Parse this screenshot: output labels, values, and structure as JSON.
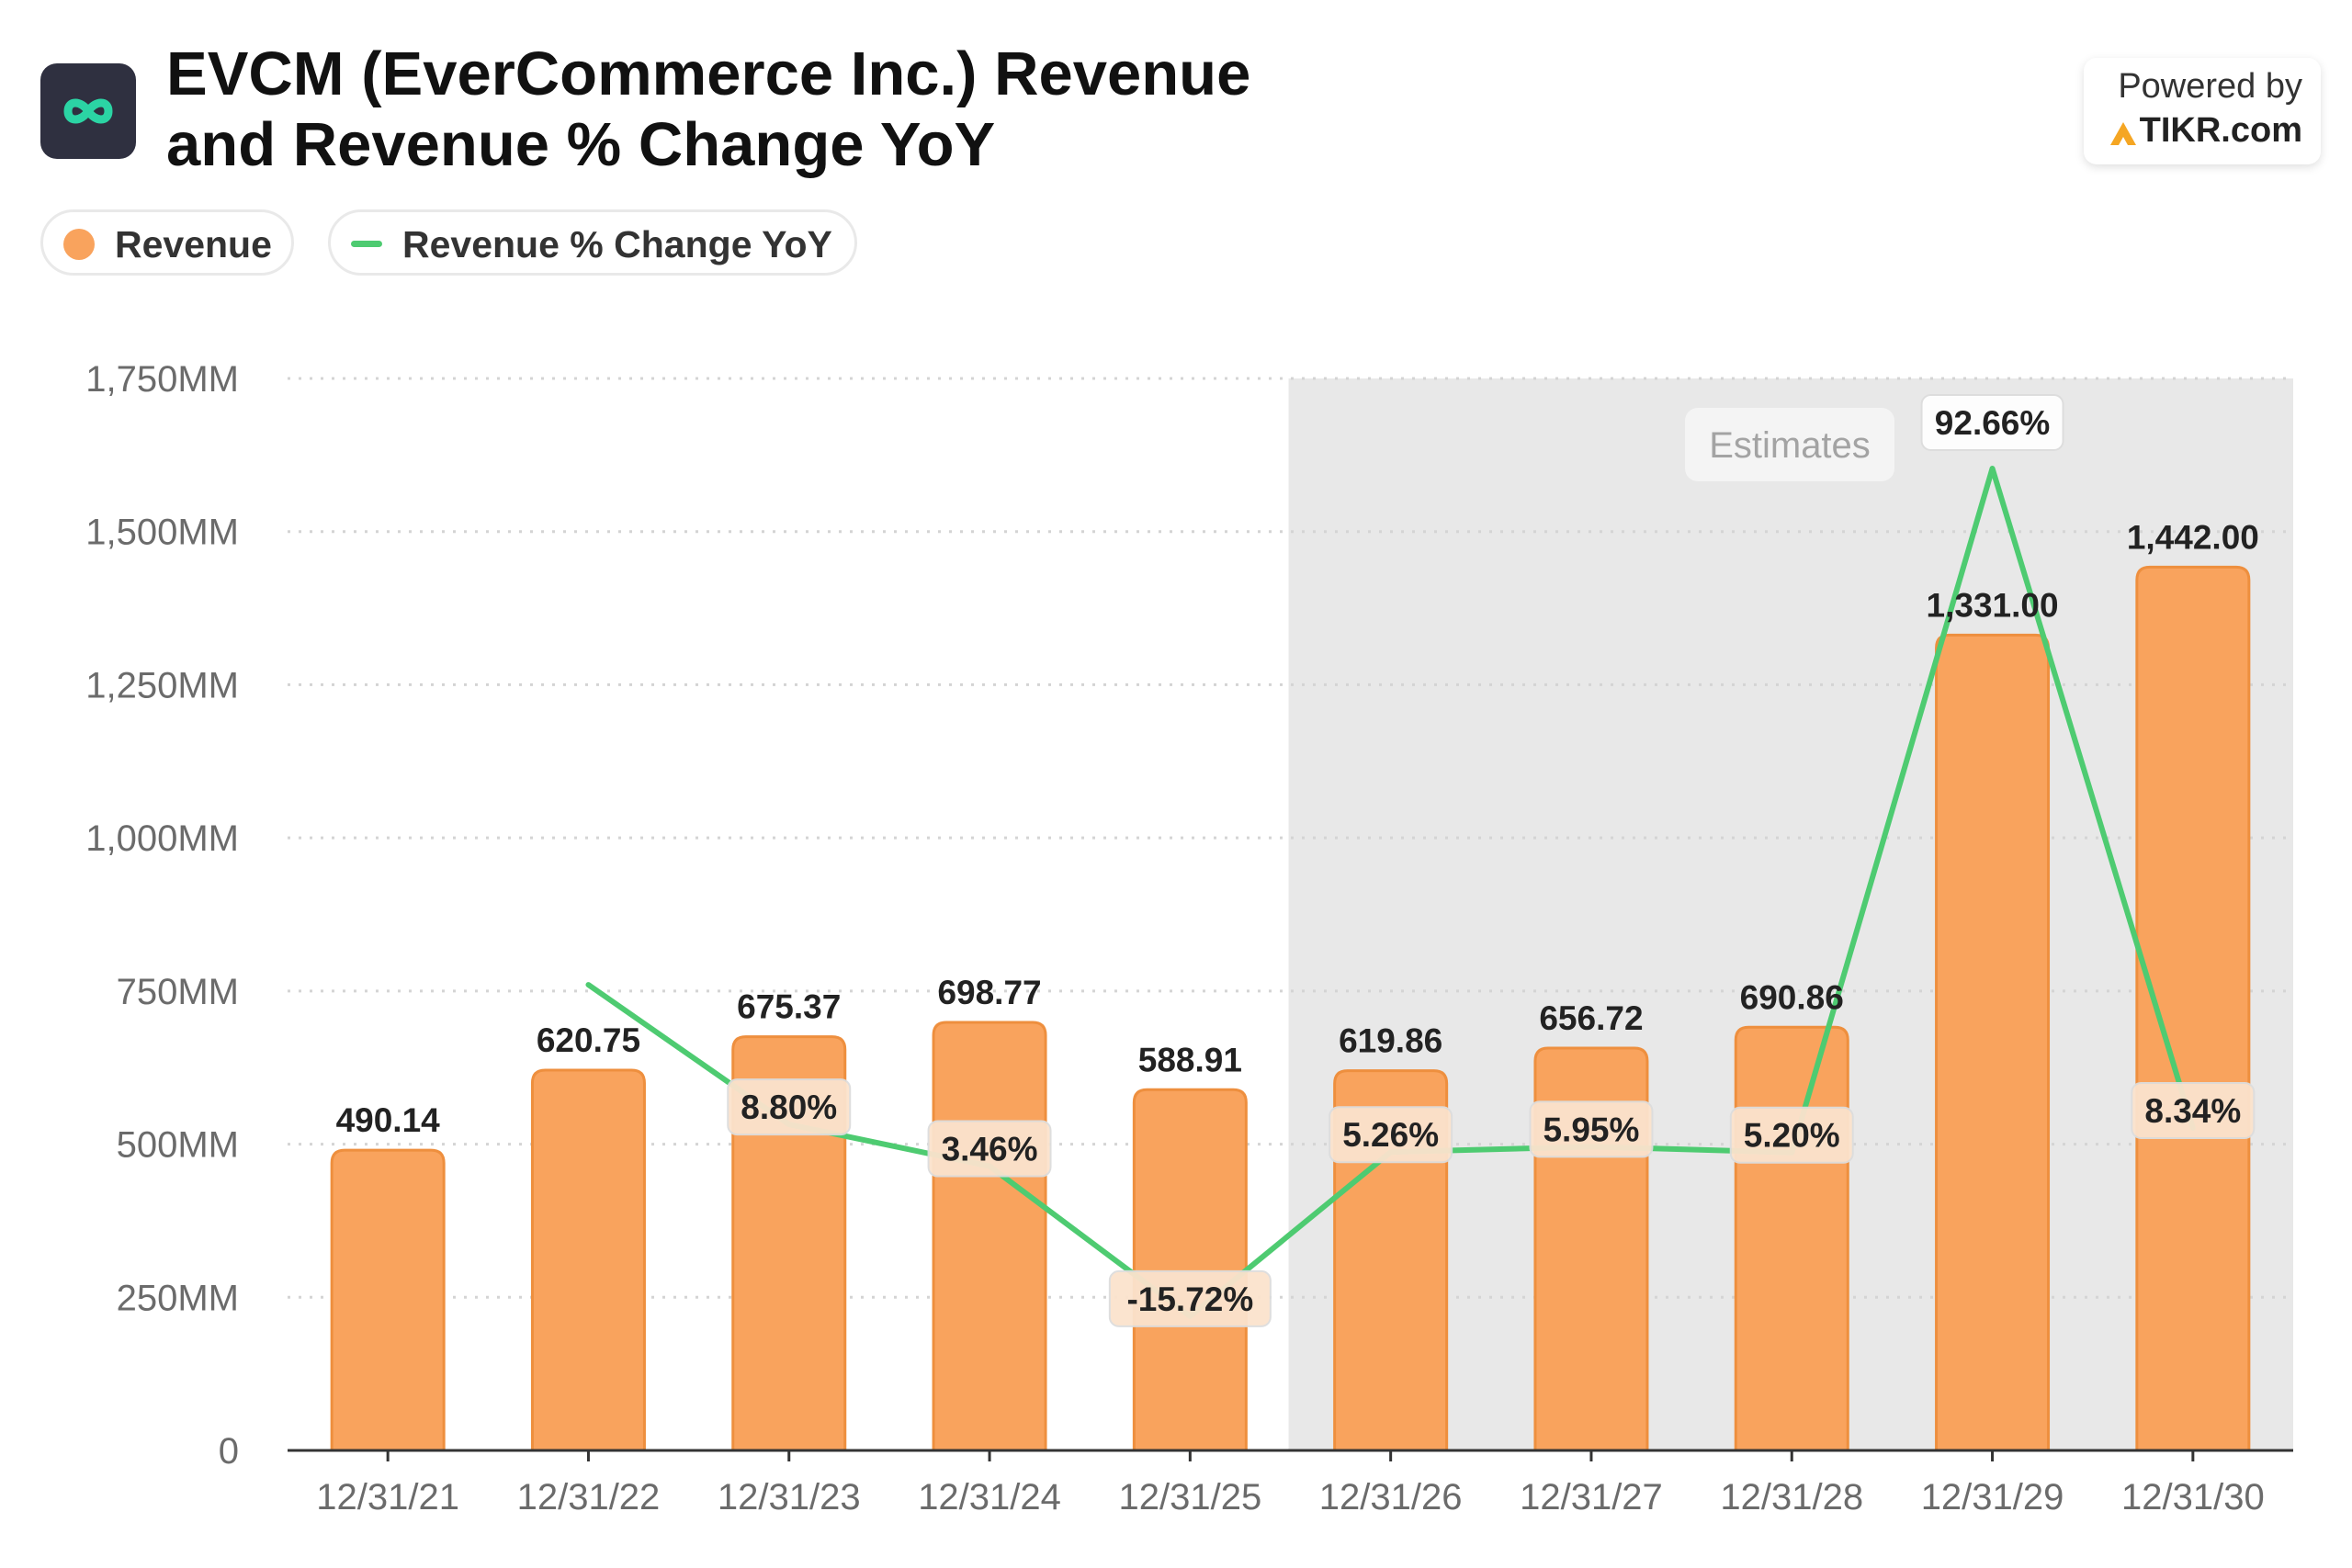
{
  "header": {
    "title_line1": "EVCM (EverCommerce Inc.) Revenue",
    "title_line2": "and Revenue % Change YoY",
    "app_icon": "infinity-icon"
  },
  "branding": {
    "powered_label": "Powered by",
    "brand_name": "TIKR.com",
    "brand_icon": "tikr-logo-icon"
  },
  "legend": {
    "revenue_label": "Revenue",
    "yoy_label": "Revenue % Change YoY"
  },
  "colors": {
    "bar": "#f9a35d",
    "bar_stroke": "#ee8f3e",
    "line": "#4ecb71",
    "estimate_shade": "#e8e8e8",
    "accent_icon": "#2bd4a4"
  },
  "chart_data": {
    "type": "bar",
    "categories": [
      "12/31/21",
      "12/31/22",
      "12/31/23",
      "12/31/24",
      "12/31/25",
      "12/31/26",
      "12/31/27",
      "12/31/28",
      "12/31/29",
      "12/31/30"
    ],
    "series": [
      {
        "name": "Revenue",
        "type": "bar",
        "values": [
          490.14,
          620.75,
          675.37,
          698.77,
          588.91,
          619.86,
          656.72,
          690.86,
          1331.0,
          1442.0
        ],
        "labels": [
          "490.14",
          "620.75",
          "675.37",
          "698.77",
          "588.91",
          "619.86",
          "656.72",
          "690.86",
          "1,331.00",
          "1,442.00"
        ]
      },
      {
        "name": "Revenue % Change YoY",
        "type": "line",
        "values": [
          null,
          26.65,
          8.8,
          3.46,
          -15.72,
          5.26,
          5.95,
          5.2,
          92.66,
          8.34
        ],
        "labels": [
          "",
          "",
          "8.80%",
          "3.46%",
          "-15.72%",
          "5.26%",
          "5.95%",
          "5.20%",
          "92.66%",
          "8.34%"
        ]
      }
    ],
    "y_ticks": [
      "0",
      "250MM",
      "500MM",
      "750MM",
      "1,000MM",
      "1,250MM",
      "1,500MM",
      "1,750MM"
    ],
    "ylim": [
      0,
      1750
    ],
    "estimates_label": "Estimates",
    "estimates_from_index": 5,
    "grid": true,
    "legend_position": "top-left"
  }
}
